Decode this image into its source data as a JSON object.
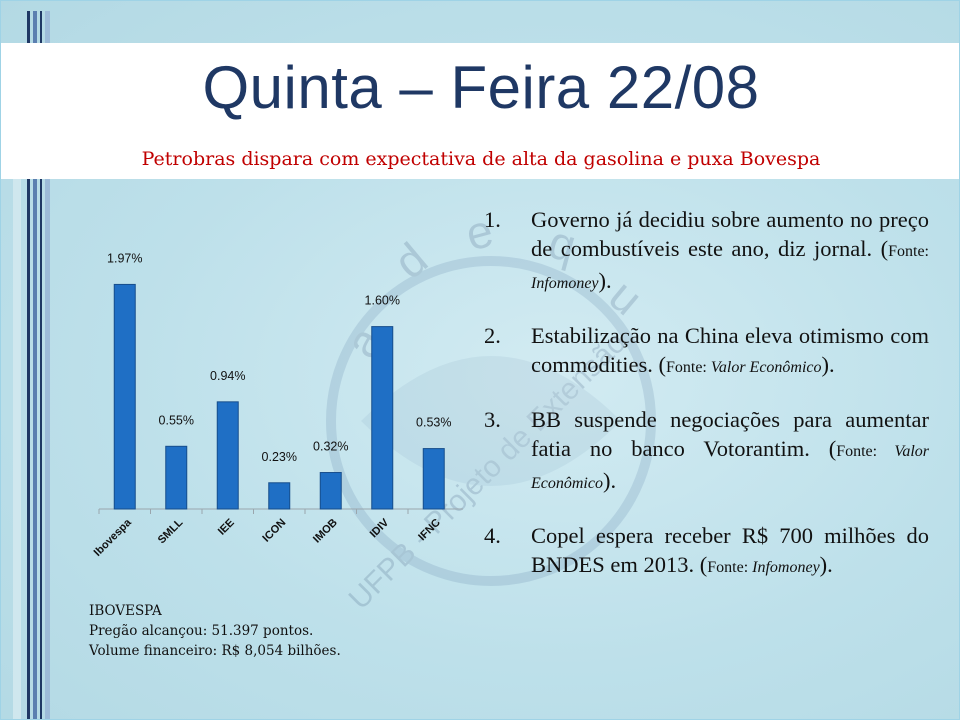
{
  "slide": {
    "title": "Quinta – Feira 22/08",
    "subtitle": "Petrobras dispara com expectativa de alta da gasolina e puxa Bovespa",
    "accent_color": "#1f3864",
    "subtitle_color": "#c00000"
  },
  "chart_data": {
    "type": "bar",
    "categories": [
      "Ibovespa",
      "SMLL",
      "IEE",
      "ICON",
      "IMOB",
      "IDIV",
      "IFNC"
    ],
    "values": [
      1.97,
      0.55,
      0.94,
      0.23,
      0.32,
      1.6,
      0.53
    ],
    "labels": [
      "1.97%",
      "0.55%",
      "0.94%",
      "0.23%",
      "0.32%",
      "1.60%",
      "0.53%"
    ],
    "ylim": [
      0,
      2.0
    ],
    "bar_color": "#1f6fc5",
    "grid": false,
    "legend": "none"
  },
  "ibovespa_box": {
    "heading": "IBOVESPA",
    "line1": "Pregão alcançou: 51.397 pontos.",
    "line2": "Volume financeiro:  R$ 8,054 bilhões."
  },
  "news": [
    {
      "num": "1.",
      "text": "Governo já decidiu sobre aumento no preço de combustíveis este ano, diz jornal. (",
      "src_label": "Fonte: ",
      "src_name": "Infomoney",
      "close": ")."
    },
    {
      "num": "2.",
      "text": "Estabilização na China eleva otimismo com commodities. (",
      "src_label": "Fonte: ",
      "src_name": "Valor Econômico",
      "close": ")."
    },
    {
      "num": "3.",
      "text": "BB suspende negociações para aumentar fatia no banco Votorantim. (",
      "src_label": "Fonte: ",
      "src_name": "Valor Econômico",
      "close": ")."
    },
    {
      "num": "4.",
      "text": "Copel espera receber R$ 700 milhões do BNDES em 2013.  (",
      "src_label": "Fonte: ",
      "src_name": "Infomoney",
      "close": ")."
    }
  ],
  "watermark": {
    "letters": [
      "a",
      "d",
      "e",
      "q",
      "u"
    ],
    "text": "UFPB - Projeto de Extensão"
  }
}
